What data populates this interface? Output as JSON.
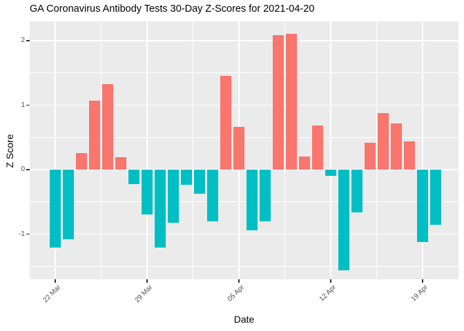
{
  "chart_data": {
    "type": "bar",
    "title": "GA Coronavirus Antibody Tests 30-Day Z-Scores for 2021-04-20",
    "xlabel": "Date",
    "ylabel": "Z Score",
    "x": [
      "2021-03-22",
      "2021-03-23",
      "2021-03-24",
      "2021-03-25",
      "2021-03-26",
      "2021-03-27",
      "2021-03-28",
      "2021-03-29",
      "2021-03-30",
      "2021-03-31",
      "2021-04-01",
      "2021-04-02",
      "2021-04-03",
      "2021-04-04",
      "2021-04-05",
      "2021-04-06",
      "2021-04-07",
      "2021-04-08",
      "2021-04-09",
      "2021-04-10",
      "2021-04-11",
      "2021-04-12",
      "2021-04-13",
      "2021-04-14",
      "2021-04-15",
      "2021-04-16",
      "2021-04-17",
      "2021-04-18",
      "2021-04-19",
      "2021-04-20"
    ],
    "values": [
      -1.21,
      -1.08,
      0.26,
      1.07,
      1.33,
      0.19,
      -0.22,
      -0.69,
      -1.21,
      -0.82,
      -0.23,
      -0.37,
      -0.8,
      1.46,
      0.66,
      -0.94,
      -0.8,
      2.09,
      2.11,
      0.2,
      0.68,
      -0.1,
      -1.56,
      -0.66,
      0.42,
      0.88,
      0.72,
      0.44,
      -1.12,
      -0.86
    ],
    "x_ticks": {
      "labels": [
        "22 Mar",
        "29 Mar",
        "05 Apr",
        "12 Apr",
        "19 Apr"
      ],
      "indices": [
        0,
        7,
        14,
        21,
        28
      ]
    },
    "y_ticks": {
      "labels": [
        "-1",
        "0",
        "1",
        "2"
      ],
      "values": [
        -1,
        0,
        1,
        2
      ]
    },
    "y_minor_gridlines": [
      -1.5,
      -0.5,
      0.5,
      1.5
    ],
    "ylim": [
      -1.7,
      2.3
    ],
    "grid": true,
    "legend": "none",
    "colors": {
      "bar_positive": "#F8766D",
      "bar_negative": "#00BFC4",
      "panel_background": "#EBEBEB",
      "gridline": "#FFFFFF",
      "tick_label": "#4D4D4D",
      "tick_mark": "#333333",
      "text": "#000000"
    }
  }
}
